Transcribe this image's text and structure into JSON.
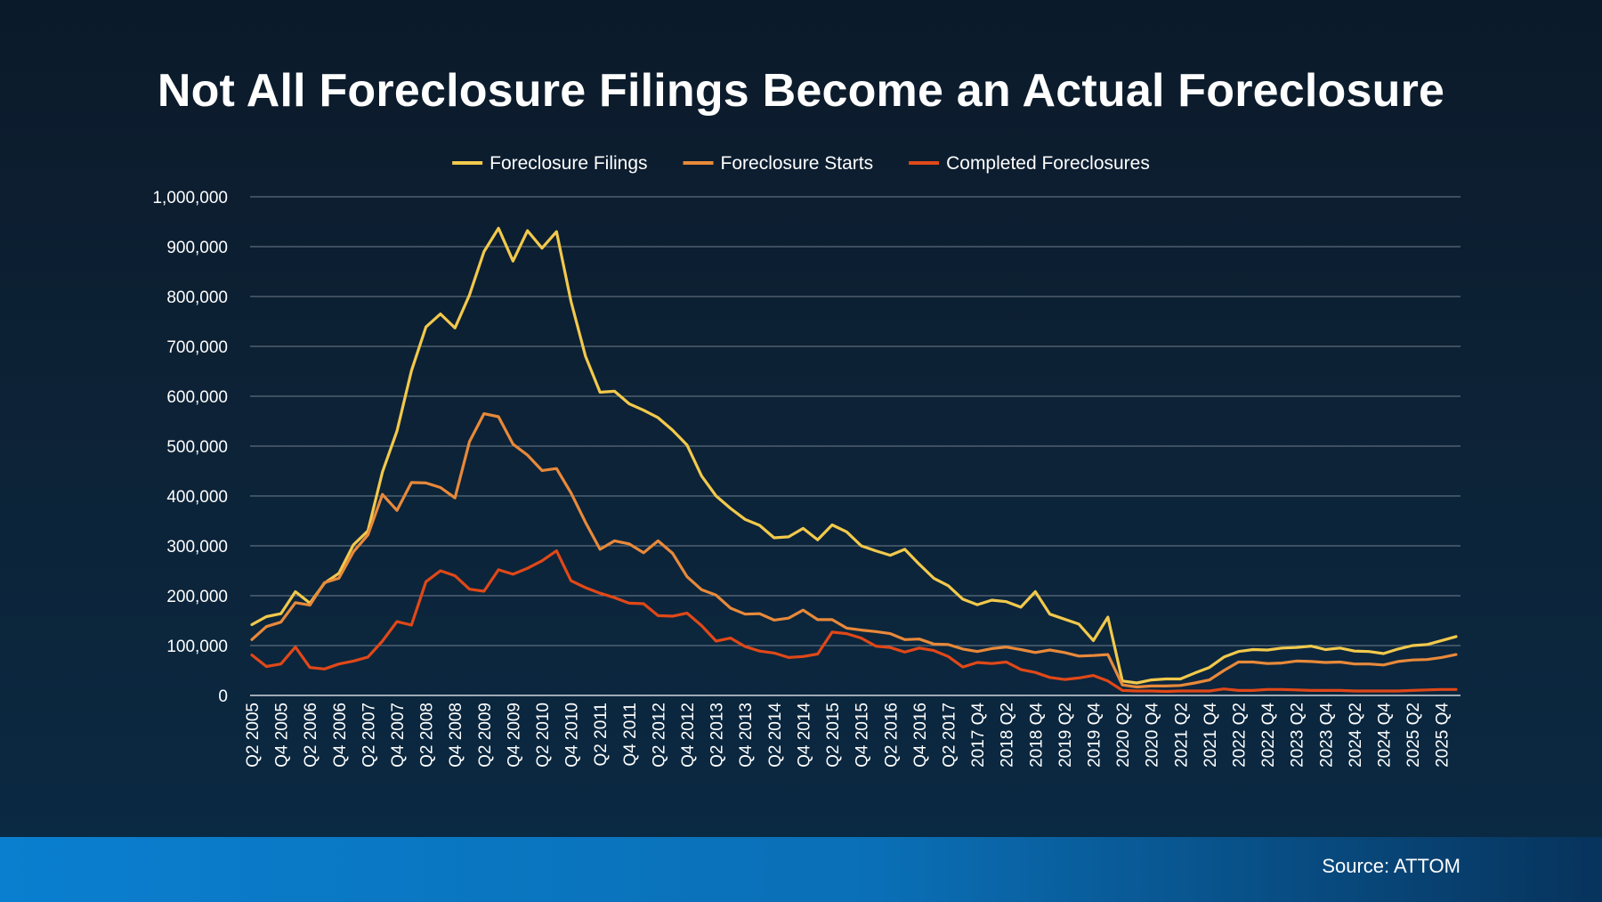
{
  "slide": {
    "title": "Not All Foreclosure Filings Become an Actual Foreclosure",
    "source": "Source: ATTOM"
  },
  "colors": {
    "background_top": "#0b1a2a",
    "background_bottom": "#0a2a44",
    "footer_bar": "#0a7fcf",
    "gridline": "#6f7e8c",
    "text": "#ffffff"
  },
  "chart_data": {
    "type": "line",
    "title": "",
    "xlabel": "",
    "ylabel": "",
    "ylim": [
      0,
      1000000
    ],
    "yticks": [
      "0",
      "100,000",
      "200,000",
      "300,000",
      "400,000",
      "500,000",
      "600,000",
      "700,000",
      "800,000",
      "900,000",
      "1,000,000"
    ],
    "ytick_values": [
      0,
      100000,
      200000,
      300000,
      400000,
      500000,
      600000,
      700000,
      800000,
      900000,
      1000000
    ],
    "grid": "horizontal",
    "legend_position": "top-center",
    "x": [
      "Q2 2005",
      "Q3 2005",
      "Q4 2005",
      "Q1 2006",
      "Q2 2006",
      "Q3 2006",
      "Q4 2006",
      "Q1 2007",
      "Q2 2007",
      "Q3 2007",
      "Q4 2007",
      "Q1 2008",
      "Q2 2008",
      "Q3 2008",
      "Q4 2008",
      "Q1 2009",
      "Q2 2009",
      "Q3 2009",
      "Q4 2009",
      "Q1 2010",
      "Q2 2010",
      "Q3 2010",
      "Q4 2010",
      "Q1 2011",
      "Q2 2011",
      "Q3 2011",
      "Q4 2011",
      "Q1 2012",
      "Q2 2012",
      "Q3 2012",
      "Q4 2012",
      "Q1 2013",
      "Q2 2013",
      "Q3 2013",
      "Q4 2013",
      "Q1 2014",
      "Q2 2014",
      "Q3 2014",
      "Q4 2014",
      "Q1 2015",
      "Q2 2015",
      "Q3 2015",
      "Q4 2015",
      "Q1 2016",
      "Q2 2016",
      "Q3 2016",
      "Q4 2016",
      "Q1 2017",
      "Q2 2017",
      "Q3 2017",
      "2017 Q4",
      "2018 Q1",
      "2018 Q2",
      "2018 Q3",
      "2018 Q4",
      "2019 Q1",
      "2019 Q2",
      "2019 Q3",
      "2019 Q4",
      "2020 Q1",
      "2020 Q2",
      "2020 Q3",
      "2020 Q4",
      "2021 Q1",
      "2021 Q2",
      "2021 Q3",
      "2021 Q4",
      "2022 Q1",
      "2022 Q2",
      "2022 Q3",
      "2022 Q4",
      "2023 Q1",
      "2023 Q2",
      "2023 Q3",
      "2023 Q4",
      "2024 Q1",
      "2024 Q2",
      "2024 Q3",
      "2024 Q4",
      "2025 Q1",
      "2025 Q2",
      "2025 Q3",
      "2025 Q4",
      "2026 Q1"
    ],
    "x_tick_labels": [
      "Q2 2005",
      "Q4 2005",
      "Q2 2006",
      "Q4 2006",
      "Q2 2007",
      "Q4 2007",
      "Q2 2008",
      "Q4 2008",
      "Q2 2009",
      "Q4 2009",
      "Q2 2010",
      "Q4 2010",
      "Q2 2011",
      "Q4 2011",
      "Q2 2012",
      "Q4 2012",
      "Q2 2013",
      "Q4 2013",
      "Q2 2014",
      "Q4 2014",
      "Q2 2015",
      "Q4 2015",
      "Q2 2016",
      "Q4 2016",
      "Q2 2017",
      "2017 Q4",
      "2018 Q2",
      "2018 Q4",
      "2019 Q2",
      "2019 Q4",
      "2020 Q2",
      "2020 Q4",
      "2021 Q2",
      "2021 Q4",
      "2022 Q2",
      "2022 Q4",
      "2023 Q2",
      "2023 Q4",
      "2024 Q2",
      "2024 Q4",
      "2025 Q2",
      "2025 Q4"
    ],
    "series": [
      {
        "name": "Foreclosure Filings",
        "color": "#f2c94c",
        "values": [
          142000,
          158000,
          164000,
          208000,
          185000,
          225000,
          245000,
          302000,
          330000,
          448000,
          530000,
          651000,
          739000,
          765000,
          737000,
          803000,
          890000,
          937000,
          871000,
          932000,
          897000,
          930000,
          790000,
          680000,
          608000,
          610000,
          585000,
          572000,
          557000,
          532000,
          502000,
          440000,
          400000,
          375000,
          353000,
          341000,
          316000,
          318000,
          335000,
          312000,
          342000,
          328000,
          300000,
          290000,
          281000,
          293000,
          263000,
          235000,
          220000,
          193000,
          182000,
          191000,
          188000,
          177000,
          208000,
          163000,
          153000,
          143000,
          110000,
          157000,
          29000,
          25000,
          31000,
          33000,
          33000,
          45000,
          56000,
          77000,
          88000,
          92000,
          91000,
          95000,
          96000,
          99000,
          92000,
          95000,
          89000,
          88000,
          84000,
          93000,
          100000,
          102000,
          110000,
          118000
        ]
      },
      {
        "name": "Foreclosure Starts",
        "color": "#e8893a",
        "values": [
          112000,
          138000,
          147000,
          186000,
          181000,
          226000,
          235000,
          288000,
          322000,
          403000,
          371000,
          427000,
          426000,
          417000,
          396000,
          509000,
          565000,
          559000,
          504000,
          482000,
          451000,
          455000,
          406000,
          347000,
          293000,
          310000,
          304000,
          286000,
          310000,
          285000,
          238000,
          212000,
          201000,
          175000,
          163000,
          164000,
          151000,
          155000,
          171000,
          152000,
          152000,
          135000,
          131000,
          128000,
          124000,
          112000,
          113000,
          103000,
          102000,
          93000,
          88000,
          94000,
          97000,
          92000,
          86000,
          91000,
          86000,
          79000,
          80000,
          82000,
          21000,
          17000,
          19000,
          19000,
          20000,
          25000,
          31000,
          50000,
          67000,
          67000,
          64000,
          65000,
          69000,
          68000,
          66000,
          67000,
          63000,
          63000,
          61000,
          68000,
          71000,
          72000,
          76000,
          82000
        ]
      },
      {
        "name": "Completed Foreclosures",
        "color": "#e04818",
        "values": [
          81000,
          58000,
          63000,
          97000,
          56000,
          53000,
          63000,
          69000,
          77000,
          109000,
          148000,
          141000,
          228000,
          250000,
          240000,
          213000,
          209000,
          252000,
          243000,
          255000,
          270000,
          290000,
          230000,
          216000,
          205000,
          196000,
          185000,
          184000,
          160000,
          159000,
          165000,
          140000,
          109000,
          115000,
          98000,
          89000,
          85000,
          76000,
          78000,
          83000,
          127000,
          124000,
          115000,
          99000,
          96000,
          87000,
          95000,
          90000,
          78000,
          57000,
          66000,
          64000,
          67000,
          52000,
          46000,
          36000,
          32000,
          35000,
          40000,
          29000,
          10000,
          9000,
          9000,
          8000,
          9000,
          9000,
          9000,
          13000,
          10000,
          10000,
          12000,
          12000,
          11000,
          10000,
          10000,
          10000,
          9000,
          9000,
          9000,
          9000,
          10000,
          11000,
          12000,
          12000
        ]
      }
    ]
  }
}
